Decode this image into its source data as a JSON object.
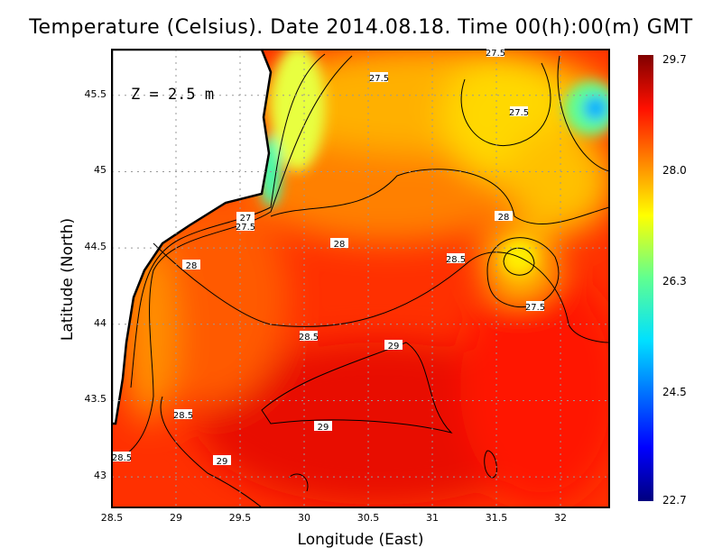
{
  "title": "Temperature (Celsius). Date 2014.08.18. Time 00(h):00(m)  GMT",
  "depth_label": "Z = 2.5 m",
  "chart_data": {
    "type": "heatmap",
    "xlabel": "Longitude (East)",
    "ylabel": "Latitude (North)",
    "xlim": [
      28.5,
      32.38
    ],
    "ylim": [
      42.8,
      45.8
    ],
    "x_ticks": [
      "28.5",
      "29",
      "29.5",
      "30",
      "30.5",
      "31",
      "31.5",
      "32"
    ],
    "y_ticks": [
      "45.5",
      "45",
      "44.5",
      "44",
      "43.5",
      "43"
    ],
    "grid": true,
    "colorbar": {
      "min": 22.7,
      "max": 29.7,
      "labels": [
        "29.7",
        "28.0",
        "26.3",
        "24.5",
        "22.7"
      ],
      "colormap": "jet"
    },
    "contour_labels": [
      "27.5",
      "27.5",
      "27.5",
      "27",
      "27.5",
      "28",
      "28",
      "28",
      "28.5",
      "27.5",
      "28.5",
      "29",
      "28.5",
      "29",
      "28.5",
      "29"
    ]
  },
  "colors": {
    "land": "#ffffff",
    "warm": "#ff2000",
    "hot": "#e01000",
    "orange": "#ff7a00",
    "yellow": "#ffd000",
    "cyan": "#00e0ff"
  }
}
